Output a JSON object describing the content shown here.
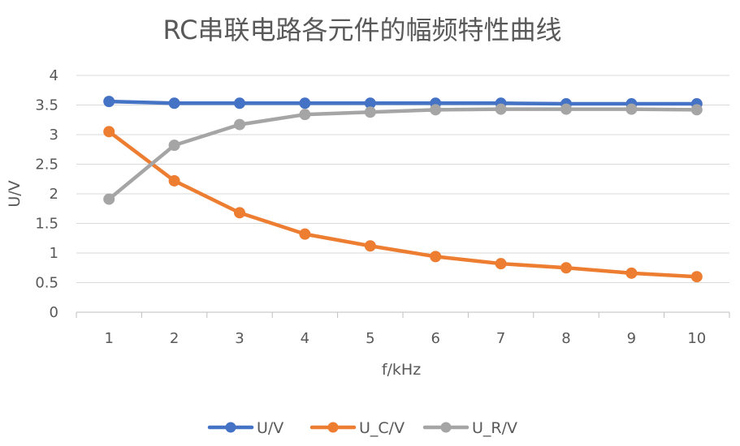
{
  "chart_data": {
    "type": "line",
    "title": "RC串联电路各元件的幅频特性曲线",
    "xlabel": "f/kHz",
    "ylabel": "U/V",
    "categories": [
      "1",
      "2",
      "3",
      "4",
      "5",
      "6",
      "7",
      "8",
      "9",
      "10"
    ],
    "ylim": [
      0,
      4
    ],
    "yticks": [
      "0",
      "0.5",
      "1",
      "1.5",
      "2",
      "2.5",
      "3",
      "3.5",
      "4"
    ],
    "grid": true,
    "legend_position": "bottom",
    "series": [
      {
        "name": "U/V",
        "color": "#4472C4",
        "values": [
          3.56,
          3.53,
          3.53,
          3.53,
          3.53,
          3.53,
          3.53,
          3.52,
          3.52,
          3.52
        ]
      },
      {
        "name": "U_C/V",
        "color": "#ED7D31",
        "values": [
          3.05,
          2.22,
          1.68,
          1.32,
          1.12,
          0.94,
          0.82,
          0.75,
          0.66,
          0.6
        ]
      },
      {
        "name": "U_R/V",
        "color": "#A5A5A5",
        "values": [
          1.91,
          2.82,
          3.17,
          3.34,
          3.38,
          3.42,
          3.43,
          3.43,
          3.43,
          3.42
        ]
      }
    ]
  }
}
